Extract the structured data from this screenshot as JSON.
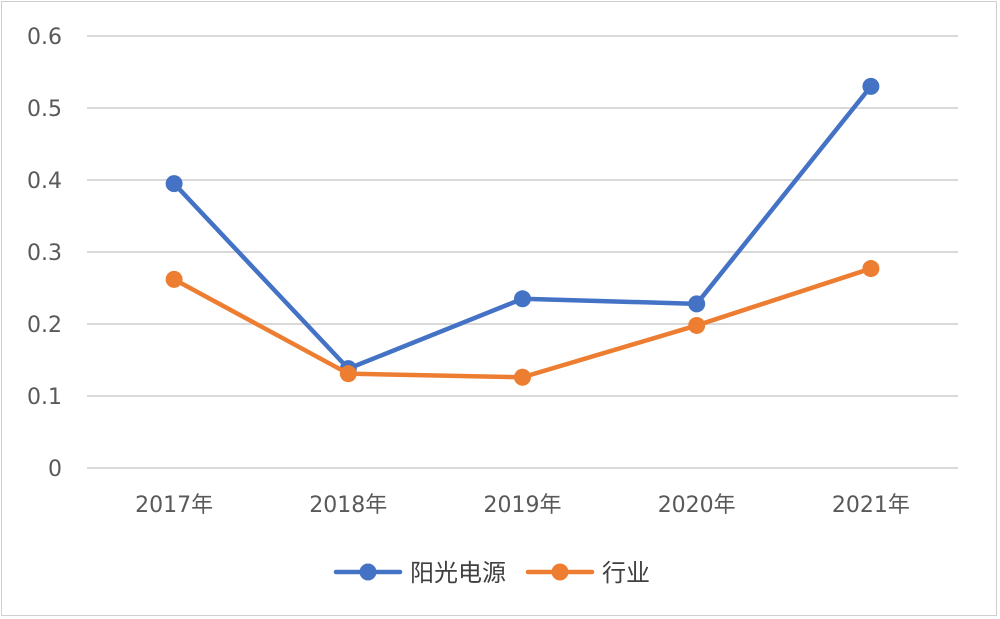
{
  "chart_data": {
    "type": "line",
    "categories": [
      "2017年",
      "2018年",
      "2019年",
      "2020年",
      "2021年"
    ],
    "series": [
      {
        "name": "阳光电源",
        "values": [
          0.395,
          0.138,
          0.235,
          0.228,
          0.53
        ],
        "color": "#4472C4"
      },
      {
        "name": "行业",
        "values": [
          0.262,
          0.131,
          0.126,
          0.198,
          0.277
        ],
        "color": "#ED7D31"
      }
    ],
    "ylim": [
      0,
      0.6
    ],
    "yticks": [
      "0",
      "0.1",
      "0.2",
      "0.3",
      "0.4",
      "0.5",
      "0.6"
    ],
    "grid": true,
    "legend_position": "bottom-center"
  }
}
